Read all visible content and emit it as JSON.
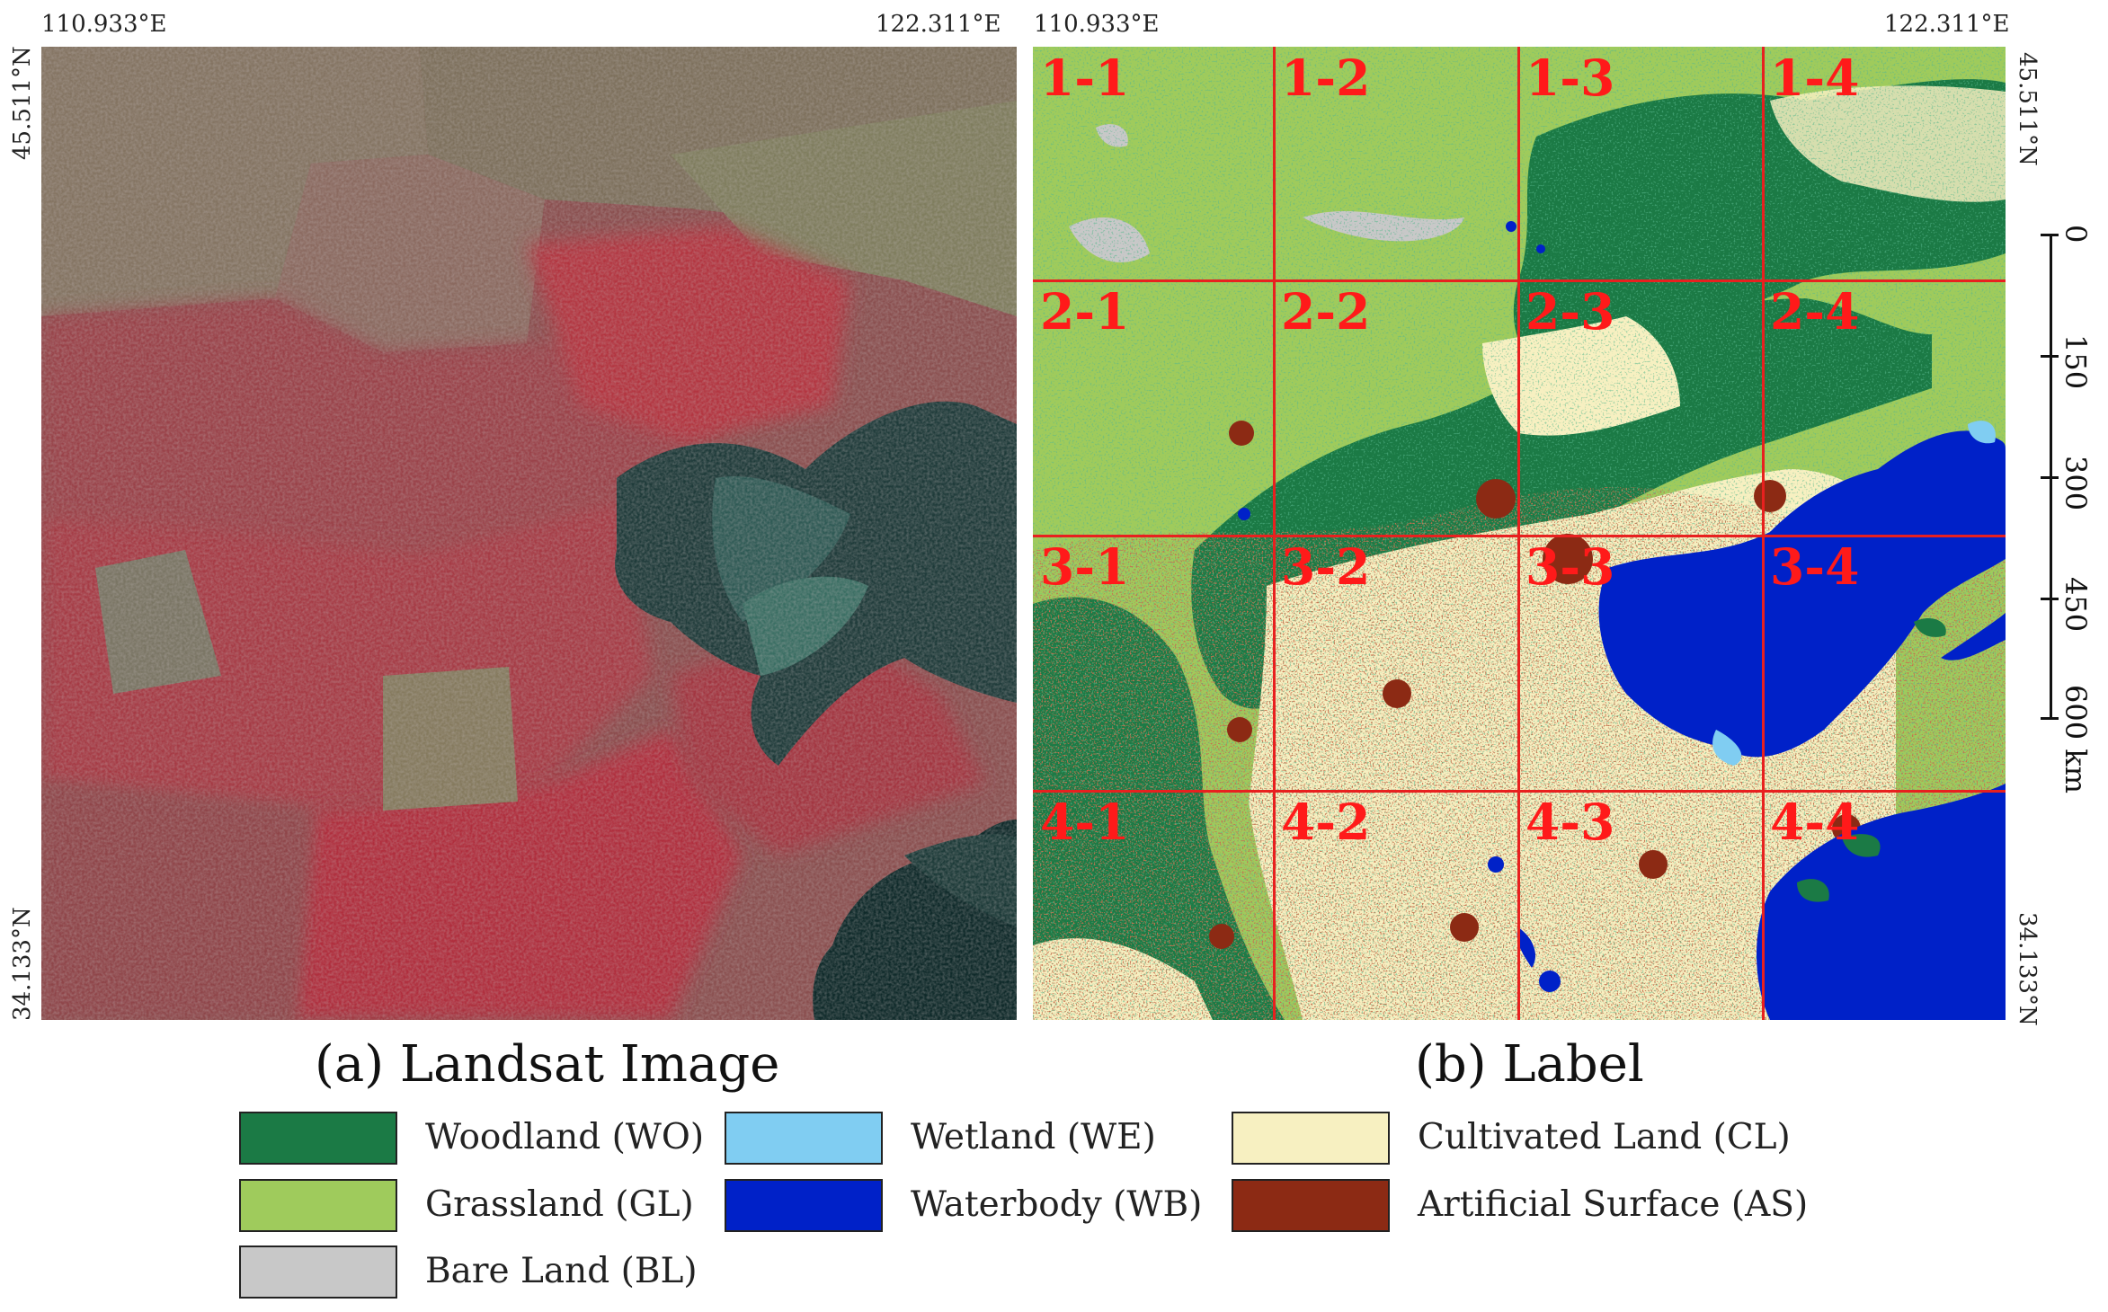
{
  "panel_a": {
    "coords": {
      "top_left_lon": "110.933°E",
      "top_right_lon": "122.311°E",
      "left_top_lat": "45.511°N",
      "left_bottom_lat": "34.133°N"
    },
    "caption": "(a) Landsat Image"
  },
  "panel_b": {
    "coords": {
      "top_left_lon": "110.933°E",
      "top_right_lon": "122.311°E",
      "right_top_lat": "45.511°N",
      "right_bottom_lat": "34.133°N"
    },
    "caption": "(b) Label",
    "tiles": [
      [
        "1-1",
        "1-2",
        "1-3",
        "1-4"
      ],
      [
        "2-1",
        "2-2",
        "2-3",
        "2-4"
      ],
      [
        "3-1",
        "3-2",
        "3-3",
        "3-4"
      ],
      [
        "4-1",
        "4-2",
        "4-3",
        "4-4"
      ]
    ],
    "grid_color": "#e8201f"
  },
  "scale_bar": {
    "ticks": [
      "0",
      "150",
      "300",
      "450",
      "600 km"
    ]
  },
  "legend": [
    {
      "label": "Woodland (WO)",
      "color": "#1b7a45"
    },
    {
      "label": "Grassland (GL)",
      "color": "#9fcb5c"
    },
    {
      "label": "Bare Land (BL)",
      "color": "#c8c8c8"
    },
    {
      "label": "Wetland (WE)",
      "color": "#80cdf2"
    },
    {
      "label": "Waterbody (WB)",
      "color": "#0021c8"
    },
    {
      "label": "Cultivated Land (CL)",
      "color": "#f7f0c1"
    },
    {
      "label": "Artificial Surface (AS)",
      "color": "#8c2a14"
    }
  ]
}
